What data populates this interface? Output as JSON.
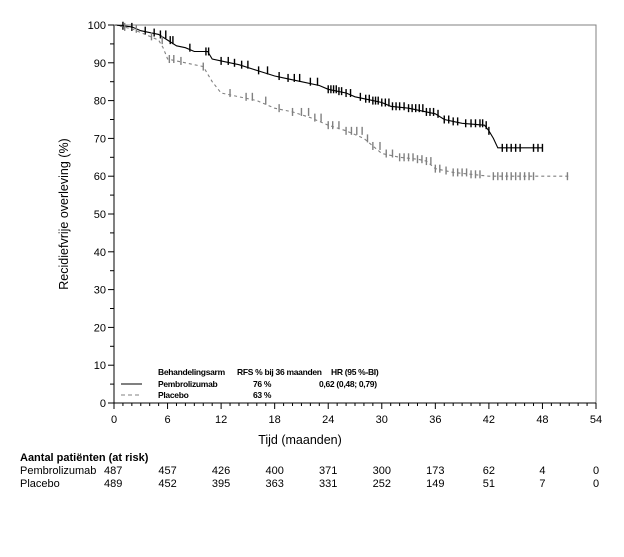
{
  "chart_data": {
    "type": "line",
    "subtype": "kaplan-meier",
    "title": "",
    "xlabel": "Tijd (maanden)",
    "ylabel": "Recidiefvrije overleving (%)",
    "xlim": [
      0,
      54
    ],
    "ylim": [
      0,
      100
    ],
    "xticks": [
      0,
      6,
      12,
      18,
      24,
      30,
      36,
      42,
      48,
      54
    ],
    "yticks": [
      0,
      10,
      20,
      30,
      40,
      50,
      60,
      70,
      80,
      90,
      100
    ],
    "grid": false,
    "series": [
      {
        "name": "Pembrolizumab",
        "style": "solid",
        "color": "#000000",
        "rfs_36_months": "76 %",
        "hr": "0,62 (0,48; 0,79)",
        "x": [
          0,
          1,
          2,
          3,
          4,
          5,
          6,
          7,
          8,
          9,
          10.5,
          11,
          12,
          13,
          14,
          16,
          18,
          19,
          21,
          23,
          24,
          25,
          26,
          27,
          28,
          29,
          30,
          31,
          33,
          35,
          36,
          37,
          38,
          39,
          41.5,
          42,
          42.5,
          43,
          48
        ],
        "y": [
          100,
          99.8,
          99.5,
          98.5,
          98,
          97.5,
          96,
          94.5,
          94,
          93,
          93,
          91,
          90.5,
          90,
          89.5,
          88,
          86.5,
          86,
          85,
          84,
          83,
          82.5,
          82,
          81,
          80.5,
          80,
          79.5,
          78.5,
          78,
          77,
          76.5,
          75,
          74.5,
          74,
          73.5,
          72,
          70,
          67.5,
          67.5
        ],
        "censor_marks_x": [
          1,
          2,
          3.5,
          4.5,
          5.2,
          5.8,
          6.3,
          6.6,
          8.5,
          10.3,
          10.6,
          12,
          12.8,
          13.5,
          14.3,
          15,
          16.2,
          17.2,
          18.5,
          19.5,
          20.2,
          20.8,
          22,
          22.8,
          24,
          24.3,
          24.6,
          24.9,
          25.2,
          25.5,
          26,
          26.5,
          27.6,
          28.2,
          28.6,
          29,
          29.3,
          29.6,
          30,
          30.4,
          30.8,
          31.2,
          31.6,
          32,
          32.5,
          33,
          33.4,
          33.8,
          34.2,
          34.6,
          35,
          35.4,
          35.8,
          36.3,
          37,
          37.5,
          38,
          38.5,
          39.4,
          40,
          40.5,
          41,
          41.3,
          41.7,
          42,
          43.5,
          44,
          44.5,
          45,
          45.5,
          47,
          47.5,
          48
        ]
      },
      {
        "name": "Placebo",
        "style": "dashed",
        "color": "#808080",
        "rfs_36_months": "63 %",
        "x": [
          0,
          1,
          2,
          3,
          4,
          5,
          5.5,
          6,
          7,
          8,
          10,
          11,
          12,
          14,
          16,
          18,
          20,
          22,
          24,
          26,
          28,
          29,
          30,
          32,
          34,
          35,
          36,
          37,
          38,
          40,
          42,
          44,
          51
        ],
        "y": [
          100,
          99.5,
          99,
          98,
          97,
          96,
          94,
          91,
          90.5,
          90,
          89,
          85,
          82,
          81,
          80,
          78,
          77,
          75.5,
          73.5,
          72,
          70,
          68,
          66,
          65,
          64.5,
          64,
          62,
          61.5,
          61,
          60.5,
          60,
          60,
          60
        ],
        "censor_marks_x": [
          1.2,
          2.5,
          4.2,
          5.4,
          6.2,
          6.7,
          7.5,
          10,
          13,
          14.8,
          15.5,
          17,
          18.5,
          20,
          21,
          21.8,
          22.5,
          23.2,
          24,
          24.5,
          25.2,
          26,
          26.6,
          27.2,
          27.8,
          28.4,
          29,
          29.8,
          30.5,
          31.2,
          32,
          32.5,
          33,
          33.5,
          34,
          34.5,
          35,
          35.5,
          36,
          36.5,
          37.2,
          38,
          38.5,
          39,
          39.5,
          40,
          40.5,
          41,
          42.5,
          43,
          43.5,
          44,
          44.5,
          45,
          45.5,
          46,
          46.5,
          47,
          50.8
        ]
      }
    ],
    "legend": {
      "placement": "bottom-left",
      "header_arm": "Behandelingsarm",
      "header_rfs": "RFS % bij 36 maanden",
      "header_hr": "HR (95 %-BI)"
    },
    "at_risk": {
      "title": "Aantal patiënten (at risk)",
      "timepoints": [
        0,
        6,
        12,
        18,
        24,
        30,
        36,
        42,
        48,
        54
      ],
      "rows": [
        {
          "label": "Pembrolizumab",
          "values": [
            "487",
            "457",
            "426",
            "400",
            "371",
            "300",
            "173",
            "62",
            "4",
            "0"
          ]
        },
        {
          "label": "Placebo",
          "values": [
            "489",
            "452",
            "395",
            "363",
            "331",
            "252",
            "149",
            "51",
            "7",
            "0"
          ]
        }
      ]
    }
  }
}
